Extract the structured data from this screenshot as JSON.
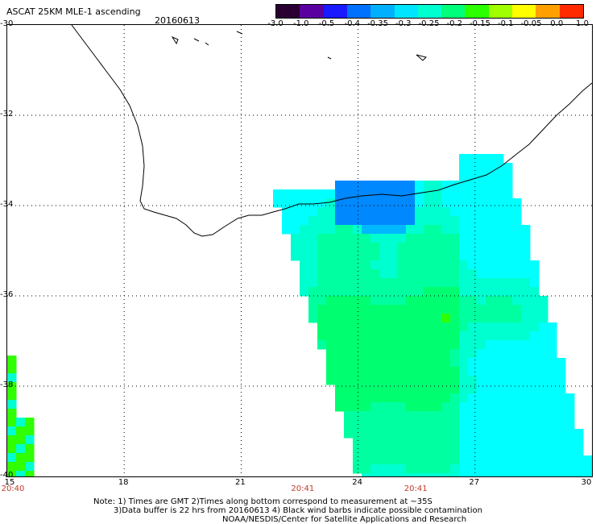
{
  "title": "ASCAT 25KM MLE-1 ascending",
  "date": "20160613",
  "colorbar": {
    "labels": [
      "-3.0",
      "-1.0",
      "-0.5",
      "-0.4",
      "-0.35",
      "-0.3",
      "-0.25",
      "-0.2",
      "-0.15",
      "-0.1",
      "-0.05",
      "0.0",
      "1.0"
    ],
    "colors": [
      "#2a0033",
      "#5a00a0",
      "#1a1aff",
      "#0070ff",
      "#00b0ff",
      "#00e5ff",
      "#00ffd0",
      "#00ff7a",
      "#2bff00",
      "#a0ff00",
      "#ffff00",
      "#ffa000",
      "#ff2a00"
    ]
  },
  "axes": {
    "lat_labels": [
      "-30",
      "-32",
      "-34",
      "-36",
      "-38",
      "-40"
    ],
    "lon_labels": [
      "15",
      "18",
      "21",
      "24",
      "27",
      "30"
    ]
  },
  "time_labels": [
    {
      "text": "20:40",
      "lon": 15
    },
    {
      "text": "20:41",
      "lon": 22.6
    },
    {
      "text": "20:41",
      "lon": 25.5
    }
  ],
  "notes": {
    "line1": "Note: 1) Times are GMT 2)Times along bottom correspond to measurement at ~35S",
    "line2": "3)Data buffer is 22 hrs from 20160613 4) Black wind barbs indicate possible contamination",
    "line3": "NOAA/NESDIS/Center for Satellite Applications and Research"
  }
}
